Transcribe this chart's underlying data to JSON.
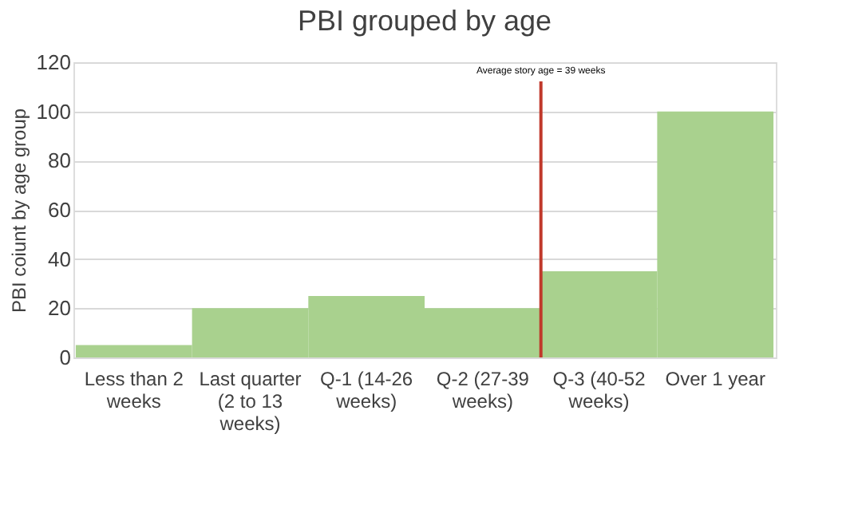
{
  "chart_data": {
    "type": "bar",
    "title": "PBI grouped by age",
    "ylabel": "PBI coiunt by age group",
    "categories": [
      "Less than 2 weeks",
      "Last quarter (2 to 13 weeks)",
      "Q-1 (14-26 weeks)",
      "Q-2 (27-39 weeks)",
      "Q-3 (40-52 weeks)",
      "Over 1 year"
    ],
    "values": [
      5,
      20,
      25,
      20,
      35,
      100
    ],
    "color": "#a9d18e",
    "ylim": [
      0,
      120
    ],
    "yticks": [
      0,
      20,
      40,
      60,
      80,
      100,
      120
    ],
    "grid": "y",
    "ref_lines": [
      {
        "axis": "x",
        "value": "Q-2 (27-39 weeks)",
        "label": "Average story age = 39 weeks",
        "color": "#c0392b"
      }
    ]
  }
}
